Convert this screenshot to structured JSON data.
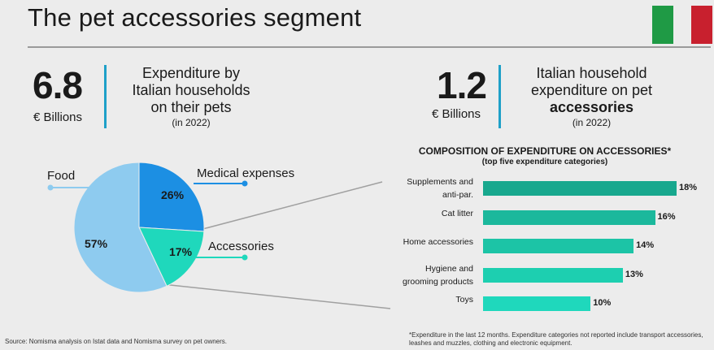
{
  "header": {
    "title": "The pet accessories segment"
  },
  "colors": {
    "flag_green": "#1f9a45",
    "flag_red": "#c8202e",
    "accent_line": "#1ea0c8"
  },
  "kpi_left": {
    "value": "6.8",
    "unit": "€ Billions",
    "line1": "Expenditure by",
    "line2": "Italian households",
    "line3": "on their pets",
    "note": "(in 2022)"
  },
  "kpi_right": {
    "value": "1.2",
    "unit": "€ Billions",
    "line1": "Italian household",
    "line2": "expenditure on pet",
    "line3": "accessories",
    "note": "(in 2022)"
  },
  "chart_data": [
    {
      "type": "pie",
      "slices": [
        {
          "label": "Food",
          "value": 57,
          "display": "57%",
          "color": "#8ecbef"
        },
        {
          "label": "Medical expenses",
          "value": 26,
          "display": "26%",
          "color": "#1c8fe3"
        },
        {
          "label": "Accessories",
          "value": 17,
          "display": "17%",
          "color": "#1fd8bc"
        }
      ]
    },
    {
      "type": "bar",
      "orientation": "horizontal",
      "title": "COMPOSITION OF EXPENDITURE ON ACCESSORIES*",
      "subtitle": "(top five expenditure categories)",
      "categories": [
        [
          "Supplements and",
          "anti-par."
        ],
        [
          "Cat litter"
        ],
        [
          "Home accessories"
        ],
        [
          "Hygiene and",
          "grooming products"
        ],
        [
          "Toys"
        ]
      ],
      "values": [
        18,
        16,
        14,
        13,
        10
      ],
      "value_labels": [
        "18%",
        "16%",
        "14%",
        "13%",
        "10%"
      ],
      "colors": [
        "#18a88e",
        "#1bb89c",
        "#1cc4a6",
        "#1dcfb0",
        "#1fd8bc"
      ],
      "xlim": [
        0,
        18
      ]
    }
  ],
  "footer": {
    "source": "Source: Nomisma analysis on Istat data and Nomisma survey on pet owners.",
    "note": "*Expenditure in the last 12 months. Expenditure categories not reported include transport accessories, leashes and muzzles, clothing and electronic equipment."
  }
}
